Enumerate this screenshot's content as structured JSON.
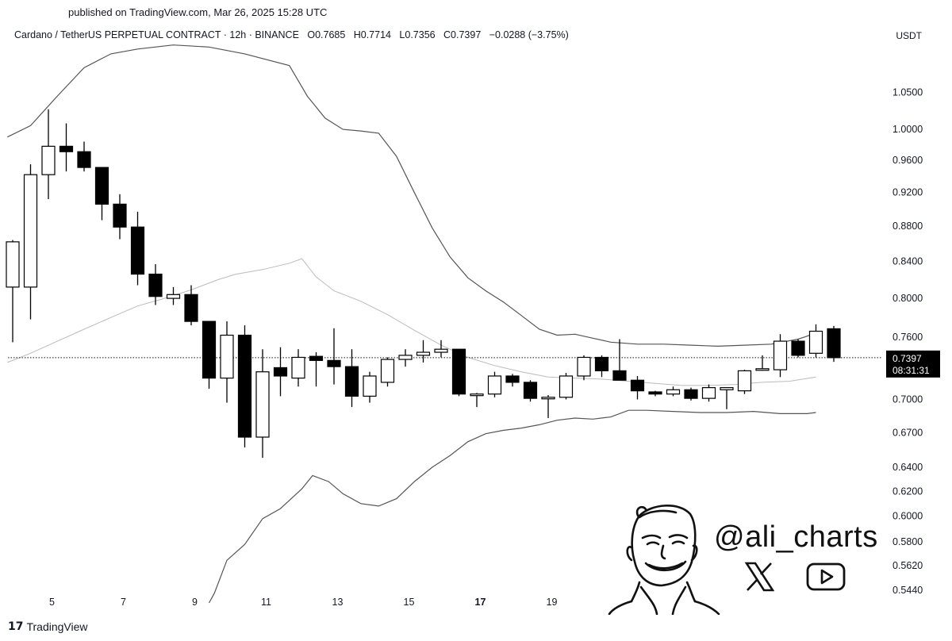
{
  "header": {
    "published": "published on TradingView.com, Mar 26, 2025 15:28 UTC",
    "symbol": "Cardano / TetherUS PERPETUAL CONTRACT · 12h · BINANCE",
    "open": "O0.7685",
    "high": "H0.7714",
    "low": "L0.7356",
    "close": "C0.7397",
    "change": "−0.0288 (−3.75%)",
    "currency": "USDT"
  },
  "price_label": {
    "price": "0.7397",
    "countdown": "08:31:31"
  },
  "branding": {
    "logo_text": "TradingView",
    "handle": "@ali_charts"
  },
  "colors": {
    "up_body": "#ffffff",
    "down_body": "#000000",
    "band": "#555555",
    "mid_band": "#bbbbbb",
    "label_bg": "#000000"
  },
  "chart_data": {
    "type": "candlestick",
    "y_scale": "log",
    "ylim": [
      0.535,
      1.12
    ],
    "y_ticks": [
      0.544,
      0.562,
      0.58,
      0.6,
      0.62,
      0.64,
      0.67,
      0.7,
      0.76,
      0.8,
      0.84,
      0.88,
      0.92,
      0.96,
      1.0,
      1.05
    ],
    "y_tick_labels": [
      "0.5440",
      "0.5620",
      "0.5800",
      "0.6000",
      "0.6200",
      "0.6400",
      "0.6700",
      "0.7000",
      "0.7600",
      "0.8000",
      "0.8400",
      "0.8800",
      "0.9200",
      "0.9600",
      "1.0000",
      "1.0500"
    ],
    "x_ticks": [
      {
        "label": "5",
        "bar": 2.2,
        "bold": false
      },
      {
        "label": "7",
        "bar": 6.2,
        "bold": false
      },
      {
        "label": "9",
        "bar": 10.2,
        "bold": false
      },
      {
        "label": "11",
        "bar": 14.2,
        "bold": false
      },
      {
        "label": "13",
        "bar": 18.2,
        "bold": false
      },
      {
        "label": "15",
        "bar": 22.2,
        "bold": false
      },
      {
        "label": "17",
        "bar": 26.2,
        "bold": true
      },
      {
        "label": "19",
        "bar": 30.2,
        "bold": false
      }
    ],
    "current_price": 0.7397,
    "candles": [
      {
        "o": 0.812,
        "h": 0.864,
        "l": 0.755,
        "c": 0.862
      },
      {
        "o": 0.812,
        "h": 0.955,
        "l": 0.778,
        "c": 0.942
      },
      {
        "o": 0.942,
        "h": 1.027,
        "l": 0.912,
        "c": 0.978
      },
      {
        "o": 0.978,
        "h": 1.008,
        "l": 0.946,
        "c": 0.971
      },
      {
        "o": 0.971,
        "h": 0.984,
        "l": 0.946,
        "c": 0.951
      },
      {
        "o": 0.951,
        "h": 0.951,
        "l": 0.887,
        "c": 0.906
      },
      {
        "o": 0.906,
        "h": 0.918,
        "l": 0.865,
        "c": 0.879
      },
      {
        "o": 0.879,
        "h": 0.897,
        "l": 0.814,
        "c": 0.826
      },
      {
        "o": 0.826,
        "h": 0.837,
        "l": 0.793,
        "c": 0.802
      },
      {
        "o": 0.8,
        "h": 0.812,
        "l": 0.793,
        "c": 0.804
      },
      {
        "o": 0.804,
        "h": 0.814,
        "l": 0.772,
        "c": 0.776
      },
      {
        "o": 0.776,
        "h": 0.776,
        "l": 0.71,
        "c": 0.72
      },
      {
        "o": 0.72,
        "h": 0.776,
        "l": 0.697,
        "c": 0.762
      },
      {
        "o": 0.762,
        "h": 0.772,
        "l": 0.657,
        "c": 0.666
      },
      {
        "o": 0.666,
        "h": 0.748,
        "l": 0.648,
        "c": 0.726
      },
      {
        "o": 0.73,
        "h": 0.75,
        "l": 0.703,
        "c": 0.722
      },
      {
        "o": 0.72,
        "h": 0.748,
        "l": 0.712,
        "c": 0.74
      },
      {
        "o": 0.741,
        "h": 0.745,
        "l": 0.712,
        "c": 0.737
      },
      {
        "o": 0.737,
        "h": 0.769,
        "l": 0.714,
        "c": 0.731
      },
      {
        "o": 0.731,
        "h": 0.748,
        "l": 0.693,
        "c": 0.703
      },
      {
        "o": 0.703,
        "h": 0.726,
        "l": 0.697,
        "c": 0.722
      },
      {
        "o": 0.716,
        "h": 0.74,
        "l": 0.712,
        "c": 0.738
      },
      {
        "o": 0.738,
        "h": 0.748,
        "l": 0.731,
        "c": 0.742
      },
      {
        "o": 0.742,
        "h": 0.757,
        "l": 0.735,
        "c": 0.745
      },
      {
        "o": 0.745,
        "h": 0.757,
        "l": 0.74,
        "c": 0.748
      },
      {
        "o": 0.748,
        "h": 0.748,
        "l": 0.703,
        "c": 0.705
      },
      {
        "o": 0.705,
        "h": 0.706,
        "l": 0.693,
        "c": 0.705
      },
      {
        "o": 0.705,
        "h": 0.726,
        "l": 0.702,
        "c": 0.722
      },
      {
        "o": 0.722,
        "h": 0.724,
        "l": 0.712,
        "c": 0.716
      },
      {
        "o": 0.716,
        "h": 0.718,
        "l": 0.698,
        "c": 0.701
      },
      {
        "o": 0.701,
        "h": 0.704,
        "l": 0.683,
        "c": 0.702
      },
      {
        "o": 0.702,
        "h": 0.725,
        "l": 0.7,
        "c": 0.722
      },
      {
        "o": 0.722,
        "h": 0.742,
        "l": 0.718,
        "c": 0.74
      },
      {
        "o": 0.74,
        "h": 0.742,
        "l": 0.721,
        "c": 0.727
      },
      {
        "o": 0.727,
        "h": 0.758,
        "l": 0.718,
        "c": 0.718
      },
      {
        "o": 0.718,
        "h": 0.722,
        "l": 0.7,
        "c": 0.708
      },
      {
        "o": 0.707,
        "h": 0.708,
        "l": 0.703,
        "c": 0.705
      },
      {
        "o": 0.705,
        "h": 0.712,
        "l": 0.703,
        "c": 0.709
      },
      {
        "o": 0.709,
        "h": 0.711,
        "l": 0.699,
        "c": 0.701
      },
      {
        "o": 0.701,
        "h": 0.714,
        "l": 0.698,
        "c": 0.711
      },
      {
        "o": 0.709,
        "h": 0.711,
        "l": 0.691,
        "c": 0.711
      },
      {
        "o": 0.708,
        "h": 0.728,
        "l": 0.705,
        "c": 0.727
      },
      {
        "o": 0.728,
        "h": 0.742,
        "l": 0.727,
        "c": 0.729
      },
      {
        "o": 0.728,
        "h": 0.763,
        "l": 0.721,
        "c": 0.756
      },
      {
        "o": 0.756,
        "h": 0.758,
        "l": 0.74,
        "c": 0.742
      },
      {
        "o": 0.744,
        "h": 0.773,
        "l": 0.74,
        "c": 0.766
      },
      {
        "o": 0.7685,
        "h": 0.7714,
        "l": 0.7356,
        "c": 0.7397
      }
    ],
    "bands": {
      "upper": [
        {
          "bar": -0.3,
          "v": 0.99
        },
        {
          "bar": 1,
          "v": 1.005
        },
        {
          "bar": 2.5,
          "v": 1.045
        },
        {
          "bar": 4,
          "v": 1.085
        },
        {
          "bar": 5.5,
          "v": 1.105
        },
        {
          "bar": 7,
          "v": 1.112
        },
        {
          "bar": 9,
          "v": 1.118
        },
        {
          "bar": 11,
          "v": 1.115
        },
        {
          "bar": 13,
          "v": 1.105
        },
        {
          "bar": 15.5,
          "v": 1.088
        },
        {
          "bar": 16.5,
          "v": 1.045
        },
        {
          "bar": 17.5,
          "v": 1.015
        },
        {
          "bar": 18.5,
          "v": 1.0
        },
        {
          "bar": 19.5,
          "v": 0.998
        },
        {
          "bar": 20.5,
          "v": 0.995
        },
        {
          "bar": 21.5,
          "v": 0.965
        },
        {
          "bar": 22.5,
          "v": 0.92
        },
        {
          "bar": 23.5,
          "v": 0.878
        },
        {
          "bar": 24.5,
          "v": 0.845
        },
        {
          "bar": 25.5,
          "v": 0.822
        },
        {
          "bar": 26.5,
          "v": 0.808
        },
        {
          "bar": 27.5,
          "v": 0.796
        },
        {
          "bar": 28.5,
          "v": 0.782
        },
        {
          "bar": 29.5,
          "v": 0.768
        },
        {
          "bar": 30.5,
          "v": 0.762
        },
        {
          "bar": 31.5,
          "v": 0.763
        },
        {
          "bar": 32.5,
          "v": 0.759
        },
        {
          "bar": 33.5,
          "v": 0.755
        },
        {
          "bar": 35,
          "v": 0.753
        },
        {
          "bar": 36.5,
          "v": 0.753
        },
        {
          "bar": 38,
          "v": 0.752
        },
        {
          "bar": 39.5,
          "v": 0.751
        },
        {
          "bar": 41,
          "v": 0.752
        },
        {
          "bar": 42.5,
          "v": 0.753
        },
        {
          "bar": 44,
          "v": 0.758
        },
        {
          "bar": 45,
          "v": 0.764
        }
      ],
      "middle": [
        {
          "bar": -0.3,
          "v": 0.735
        },
        {
          "bar": 1,
          "v": 0.744
        },
        {
          "bar": 2.5,
          "v": 0.756
        },
        {
          "bar": 4,
          "v": 0.768
        },
        {
          "bar": 5.5,
          "v": 0.78
        },
        {
          "bar": 7,
          "v": 0.792
        },
        {
          "bar": 8.5,
          "v": 0.8
        },
        {
          "bar": 10,
          "v": 0.809
        },
        {
          "bar": 11.5,
          "v": 0.82
        },
        {
          "bar": 12.5,
          "v": 0.826
        },
        {
          "bar": 14,
          "v": 0.831
        },
        {
          "bar": 15.5,
          "v": 0.838
        },
        {
          "bar": 16.2,
          "v": 0.843
        },
        {
          "bar": 17,
          "v": 0.823
        },
        {
          "bar": 18,
          "v": 0.808
        },
        {
          "bar": 19.5,
          "v": 0.797
        },
        {
          "bar": 21,
          "v": 0.783
        },
        {
          "bar": 22.5,
          "v": 0.767
        },
        {
          "bar": 24,
          "v": 0.752
        },
        {
          "bar": 25.5,
          "v": 0.74
        },
        {
          "bar": 27,
          "v": 0.732
        },
        {
          "bar": 28.5,
          "v": 0.726
        },
        {
          "bar": 30,
          "v": 0.721
        },
        {
          "bar": 31.5,
          "v": 0.72
        },
        {
          "bar": 33,
          "v": 0.719
        },
        {
          "bar": 34.5,
          "v": 0.717
        },
        {
          "bar": 36,
          "v": 0.715
        },
        {
          "bar": 37.5,
          "v": 0.713
        },
        {
          "bar": 39,
          "v": 0.713
        },
        {
          "bar": 40.5,
          "v": 0.714
        },
        {
          "bar": 42,
          "v": 0.716
        },
        {
          "bar": 43.5,
          "v": 0.717
        },
        {
          "bar": 45,
          "v": 0.721
        }
      ],
      "lower": [
        {
          "bar": 11,
          "v": 0.535
        },
        {
          "bar": 11.3,
          "v": 0.542
        },
        {
          "bar": 12,
          "v": 0.566
        },
        {
          "bar": 13,
          "v": 0.578
        },
        {
          "bar": 14,
          "v": 0.598
        },
        {
          "bar": 15,
          "v": 0.606
        },
        {
          "bar": 16.2,
          "v": 0.622
        },
        {
          "bar": 16.8,
          "v": 0.633
        },
        {
          "bar": 17.7,
          "v": 0.628
        },
        {
          "bar": 18.5,
          "v": 0.618
        },
        {
          "bar": 19.5,
          "v": 0.61
        },
        {
          "bar": 20.5,
          "v": 0.608
        },
        {
          "bar": 21.5,
          "v": 0.614
        },
        {
          "bar": 22.5,
          "v": 0.628
        },
        {
          "bar": 23.5,
          "v": 0.64
        },
        {
          "bar": 24.5,
          "v": 0.65
        },
        {
          "bar": 25.5,
          "v": 0.662
        },
        {
          "bar": 26.5,
          "v": 0.669
        },
        {
          "bar": 27.5,
          "v": 0.672
        },
        {
          "bar": 28.5,
          "v": 0.674
        },
        {
          "bar": 29.5,
          "v": 0.677
        },
        {
          "bar": 30.5,
          "v": 0.681
        },
        {
          "bar": 31.5,
          "v": 0.683
        },
        {
          "bar": 32.5,
          "v": 0.682
        },
        {
          "bar": 33.5,
          "v": 0.684
        },
        {
          "bar": 34.5,
          "v": 0.69
        },
        {
          "bar": 35.5,
          "v": 0.69
        },
        {
          "bar": 37,
          "v": 0.689
        },
        {
          "bar": 38.5,
          "v": 0.688
        },
        {
          "bar": 40,
          "v": 0.688
        },
        {
          "bar": 41.5,
          "v": 0.689
        },
        {
          "bar": 43,
          "v": 0.687
        },
        {
          "bar": 44.5,
          "v": 0.687
        },
        {
          "bar": 45,
          "v": 0.688
        }
      ]
    }
  }
}
